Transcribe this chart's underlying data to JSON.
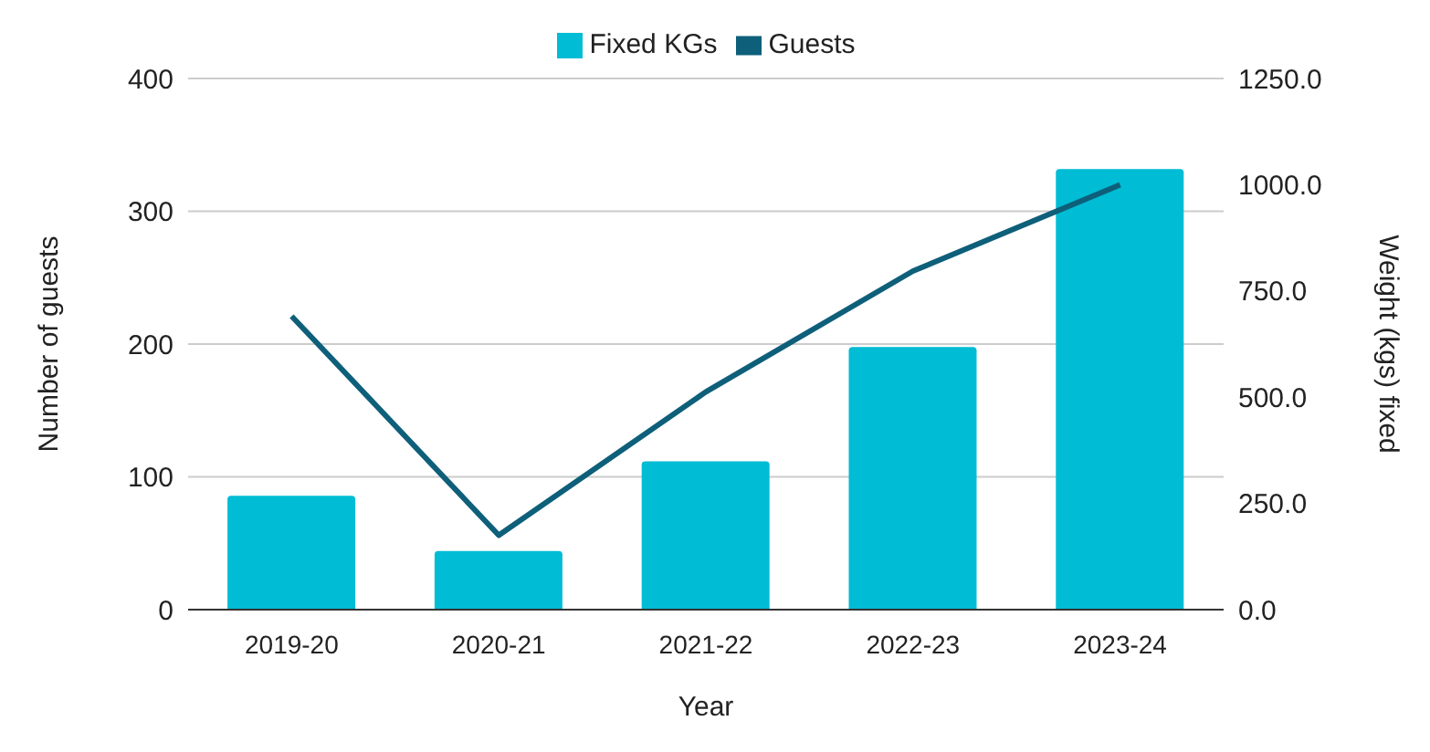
{
  "chart_data": {
    "type": "bar",
    "xlabel": "Year",
    "ylabel": "Number of guests",
    "y2label": "Weight (kgs) fixed",
    "categories": [
      "2019-20",
      "2020-21",
      "2021-22",
      "2022-23",
      "2023-24"
    ],
    "series": [
      {
        "name": "Fixed KGs",
        "axis": "y2",
        "color": "#00bcd4",
        "values": [
          268,
          138,
          349,
          618,
          1037
        ]
      },
      {
        "name": "Guests",
        "type": "line",
        "color": "#0e5f7a",
        "values": [
          221,
          56,
          164,
          255,
          320
        ]
      }
    ],
    "ylim": [
      0,
      400
    ],
    "yticks": [
      0,
      100,
      200,
      300,
      400
    ],
    "y2lim": [
      0,
      1250
    ],
    "y2ticks": [
      {
        "value": 0,
        "label": "0.0"
      },
      {
        "value": 250,
        "label": "250.0"
      },
      {
        "value": 500,
        "label": "500.0"
      },
      {
        "value": 750,
        "label": "750.0"
      },
      {
        "value": 1000,
        "label": "1000.0"
      },
      {
        "value": 1250,
        "label": "1250.0"
      }
    ],
    "grid": "y",
    "legend": "top",
    "marker": "none",
    "line_style": "solid"
  }
}
